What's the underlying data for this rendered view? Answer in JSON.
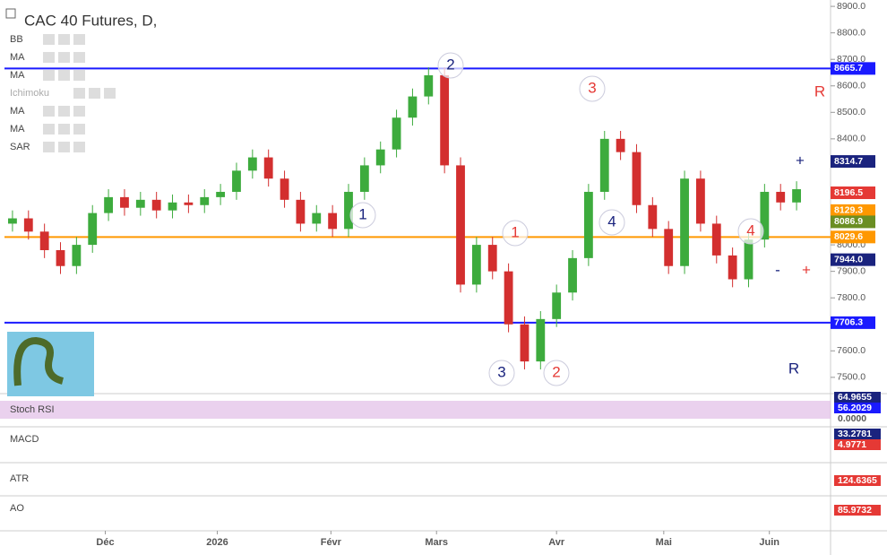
{
  "chart_data": {
    "type": "candlestick",
    "title": "CAC 40 Futures, D,",
    "up_color": "#3dab3d",
    "down_color": "#d32f2f",
    "open": [
      8080,
      8100,
      8050,
      7980,
      7920,
      8000,
      8120,
      8180,
      8140,
      8170,
      8130,
      8160,
      8150,
      8180,
      8200,
      8280,
      8330,
      8250,
      8170,
      8080,
      8120,
      8060,
      8200,
      8300,
      8360,
      8480,
      8560,
      8640,
      8300,
      7850,
      8000,
      7900,
      7700,
      7560,
      7720,
      7820,
      7950,
      8200,
      8400,
      8350,
      8150,
      8060,
      7920,
      8250,
      8080,
      7960,
      7870,
      8020,
      8200,
      8160
    ],
    "high": [
      8130,
      8130,
      8080,
      8010,
      8030,
      8150,
      8210,
      8210,
      8200,
      8200,
      8190,
      8190,
      8210,
      8230,
      8310,
      8360,
      8360,
      8280,
      8200,
      8150,
      8150,
      8230,
      8330,
      8390,
      8510,
      8590,
      8670,
      8670,
      8330,
      8030,
      8030,
      7930,
      7730,
      7750,
      7850,
      7980,
      8230,
      8430,
      8430,
      8380,
      8180,
      8090,
      8280,
      8280,
      8110,
      7990,
      8050,
      8230,
      8230,
      8240
    ],
    "low": [
      8050,
      8020,
      7950,
      7890,
      7890,
      7970,
      8090,
      8110,
      8110,
      8100,
      8100,
      8120,
      8120,
      8150,
      8170,
      8250,
      8220,
      8140,
      8050,
      8050,
      8030,
      8030,
      8170,
      8270,
      8330,
      8450,
      8530,
      8270,
      7820,
      7820,
      7870,
      7670,
      7530,
      7530,
      7690,
      7790,
      7920,
      8170,
      8320,
      8120,
      8030,
      7890,
      7890,
      8050,
      7930,
      7840,
      7840,
      7990,
      8130,
      8130
    ],
    "close": [
      8100,
      8050,
      7980,
      7920,
      8000,
      8120,
      8180,
      8140,
      8170,
      8130,
      8160,
      8150,
      8180,
      8200,
      8280,
      8330,
      8250,
      8170,
      8080,
      8120,
      8060,
      8200,
      8300,
      8360,
      8480,
      8560,
      8640,
      8300,
      7850,
      8000,
      7900,
      7700,
      7560,
      7720,
      7820,
      7950,
      8200,
      8400,
      8350,
      8150,
      8060,
      7920,
      8250,
      8080,
      7960,
      7870,
      8020,
      8200,
      8160,
      8210
    ],
    "xlim": [
      -0.5,
      49.5
    ],
    "xticks": [
      {
        "value": 5.8,
        "label": "Déc"
      },
      {
        "value": 12.8,
        "label": "2026"
      },
      {
        "value": 19.9,
        "label": "Févr"
      },
      {
        "value": 26.5,
        "label": "Mars"
      },
      {
        "value": 34,
        "label": "Avr"
      },
      {
        "value": 40.7,
        "label": "Mai"
      },
      {
        "value": 47.3,
        "label": "Juin"
      }
    ],
    "ylim": [
      7442,
      8924
    ],
    "yticks": [
      {
        "value": 8900,
        "label": "8900.0"
      },
      {
        "value": 8800,
        "label": "8800.0"
      },
      {
        "value": 8700,
        "label": "8700.0"
      },
      {
        "value": 8600,
        "label": "8600.0"
      },
      {
        "value": 8500,
        "label": "8500.0"
      },
      {
        "value": 8400,
        "label": "8400.0"
      },
      {
        "value": 8300,
        "label": "8300.0"
      },
      {
        "value": 8200,
        "label": "8200.0"
      },
      {
        "value": 8100,
        "label": "8100.0"
      },
      {
        "value": 8000,
        "label": "8000.0"
      },
      {
        "value": 7900,
        "label": "7900.0"
      },
      {
        "value": 7800,
        "label": "7800.0"
      },
      {
        "value": 7700,
        "label": "7700.0"
      },
      {
        "value": 7600,
        "label": "7600.0"
      },
      {
        "value": 7500,
        "label": "7500.0"
      }
    ],
    "price_labels": [
      {
        "value": 8665.7,
        "label": "8665.7",
        "color": "#1a1aff",
        "line": true
      },
      {
        "value": 8314.7,
        "label": "8314.7",
        "color": "#1a237e",
        "line": false
      },
      {
        "value": 8196.5,
        "label": "8196.5",
        "color": "#e53935",
        "line": false
      },
      {
        "value": 8129.3,
        "label": "8129.3",
        "color": "#ff9800",
        "line": false
      },
      {
        "value": 8086.9,
        "label": "8086.9",
        "color": "#6b8e23",
        "line": false
      },
      {
        "value": 8029.6,
        "label": "8029.6",
        "color": "#ff9800",
        "line": true
      },
      {
        "value": 7944,
        "label": "7944.0",
        "color": "#1a237e",
        "line": false
      },
      {
        "value": 7706.3,
        "label": "7706.3",
        "color": "#1a1aff",
        "line": true
      }
    ],
    "indicators": [
      "BB",
      "MA",
      "MA",
      "Ichimoku",
      "MA",
      "MA",
      "SAR"
    ],
    "annotations": [
      {
        "text": "1",
        "color": "#1a237e"
      },
      {
        "text": "2",
        "color": "#1a237e"
      },
      {
        "text": "3",
        "color": "#1a237e"
      },
      {
        "text": "4",
        "color": "#1a237e"
      },
      {
        "text": "1",
        "color": "#e53935"
      },
      {
        "text": "2",
        "color": "#e53935"
      },
      {
        "text": "3",
        "color": "#e53935"
      },
      {
        "text": "4",
        "color": "#e53935"
      },
      {
        "text": "R",
        "color": "#e53935"
      },
      {
        "text": "R",
        "color": "#1a237e"
      },
      {
        "text": "+",
        "color": "#1a237e"
      },
      {
        "text": "+",
        "color": "#e53935"
      },
      {
        "text": "-",
        "color": "#1a237e"
      }
    ],
    "panels": [
      {
        "name": "Stoch RSI",
        "labels": [
          {
            "value": 64.9655,
            "label": "64.9655",
            "color": "#1a237e"
          },
          {
            "value": 56.2029,
            "label": "56.2029",
            "color": "#1a1aff"
          },
          {
            "value": 0,
            "label": "0.0000",
            "color": "#ffffff"
          }
        ]
      },
      {
        "name": "MACD",
        "labels": [
          {
            "value": 33.2781,
            "label": "33.2781",
            "color": "#1a237e"
          },
          {
            "value": 4.9771,
            "label": "4.9771",
            "color": "#e53935"
          }
        ]
      },
      {
        "name": "ATR",
        "labels": [
          {
            "value": 124.6365,
            "label": "124.6365",
            "color": "#e53935"
          }
        ]
      },
      {
        "name": "AO",
        "labels": [
          {
            "value": 85.9732,
            "label": "85.9732",
            "color": "#e53935"
          }
        ]
      }
    ]
  }
}
